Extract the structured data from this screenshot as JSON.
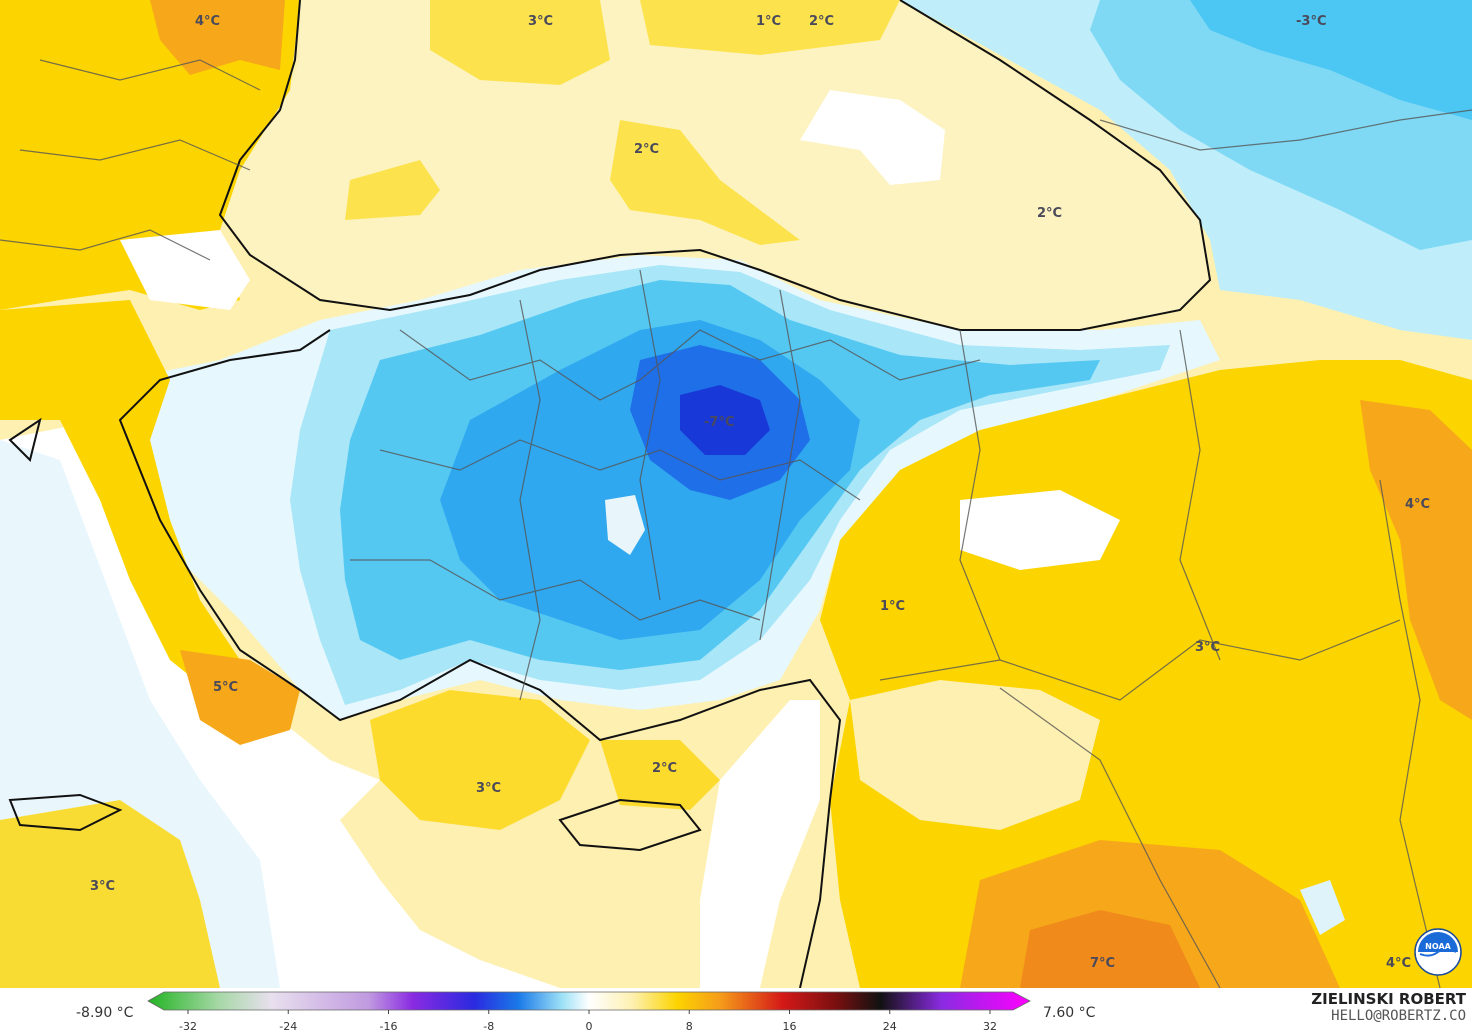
{
  "map": {
    "labels": [
      {
        "id": "lbl-balkans-n",
        "text": "4°C"
      },
      {
        "id": "lbl-blacksea-w",
        "text": "3°C"
      },
      {
        "id": "lbl-blacksea-n1",
        "text": "1°C"
      },
      {
        "id": "lbl-blacksea-n2",
        "text": "2°C"
      },
      {
        "id": "lbl-russia",
        "text": "-3°C"
      },
      {
        "id": "lbl-blacksea-c",
        "text": "2°C"
      },
      {
        "id": "lbl-blacksea-e",
        "text": "2°C"
      },
      {
        "id": "lbl-anatolia-min",
        "text": "-7°C"
      },
      {
        "id": "lbl-iran",
        "text": "4°C"
      },
      {
        "id": "lbl-se-turkey",
        "text": "1°C"
      },
      {
        "id": "lbl-syria-n",
        "text": "3°C"
      },
      {
        "id": "lbl-rhodes",
        "text": "5°C"
      },
      {
        "id": "lbl-med",
        "text": "3°C"
      },
      {
        "id": "lbl-cyprus-n",
        "text": "2°C"
      },
      {
        "id": "lbl-crete",
        "text": "3°C"
      },
      {
        "id": "lbl-iraq",
        "text": "7°C"
      },
      {
        "id": "lbl-corner",
        "text": "4°C"
      }
    ]
  },
  "colorbar": {
    "min_label": "-8.90 °C",
    "max_label": "7.60 °C",
    "ticks": [
      "-32",
      "-24",
      "-16",
      "-8",
      "0",
      "8",
      "16",
      "24",
      "32"
    ],
    "colors": {
      "cold_extreme": "#22b422",
      "purple": "#8a2be2",
      "deep_blue": "#1e40e6",
      "blue": "#1aa0f0",
      "light_blue": "#9fe2f7",
      "white": "#ffffff",
      "pale_yellow": "#fdf0b0",
      "yellow": "#fcd400",
      "orange": "#f59a1a",
      "red": "#d41818",
      "black": "#111111",
      "magenta": "#ff00ff"
    }
  },
  "branding": {
    "name": "ZIELINSKI ROBERT",
    "email": "HELLO@ROBERTZ.CO",
    "logo": "noaa-logo"
  }
}
